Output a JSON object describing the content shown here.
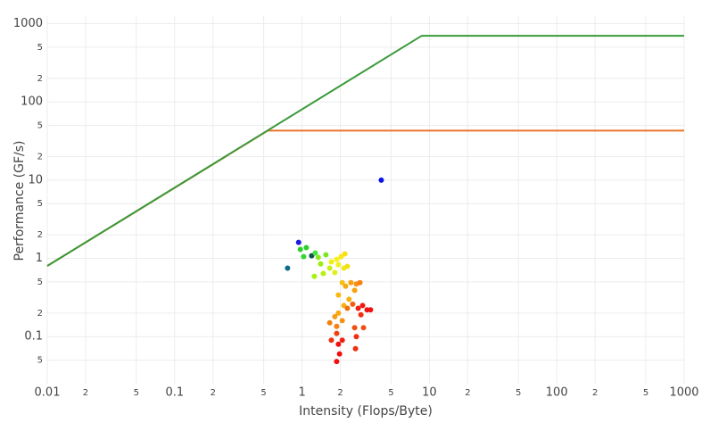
{
  "chart_data": {
    "type": "roofline",
    "x_label": "Intensity (Flops/Byte)",
    "y_label": "Performance (GF/s)",
    "xlog": true,
    "ylog": true,
    "grid": true,
    "xlim": [
      0.01,
      1000
    ],
    "ylim": [
      0.025,
      1250
    ],
    "xticks": [
      0.01,
      {
        "value": 0.02,
        "label": "2"
      },
      {
        "value": 0.05,
        "label": "5"
      },
      0.1,
      {
        "value": 0.2,
        "label": "2"
      },
      {
        "value": 0.5,
        "label": "5"
      },
      1,
      {
        "value": 2,
        "label": "2"
      },
      {
        "value": 5,
        "label": "5"
      },
      10,
      {
        "value": 20,
        "label": "2"
      },
      {
        "value": 50,
        "label": "5"
      },
      100,
      {
        "value": 200,
        "label": "2"
      },
      {
        "value": 500,
        "label": "5"
      },
      1000
    ],
    "yticks": [
      {
        "value": 0.05,
        "label": "5"
      },
      0.1,
      {
        "value": 0.2,
        "label": "2"
      },
      {
        "value": 0.5,
        "label": "5"
      },
      1,
      {
        "value": 2,
        "label": "2"
      },
      {
        "value": 5,
        "label": "5"
      },
      10,
      {
        "value": 20,
        "label": "2"
      },
      {
        "value": 50,
        "label": "5"
      },
      100,
      {
        "value": 200,
        "label": "2"
      },
      {
        "value": 500,
        "label": "5"
      },
      1000
    ],
    "lines": [
      {
        "color": "#e8762b",
        "x": [
          0.01,
          0.54,
          1000
        ],
        "values": [
          0.8,
          43,
          43
        ]
      },
      {
        "color": "#3a9a3a",
        "x": [
          0.01,
          8.7,
          1000
        ],
        "values": [
          0.8,
          700,
          700
        ]
      }
    ],
    "points": {
      "x": [
        4.19,
        0.94,
        0.77,
        0.97,
        1.08,
        1.03,
        1.19,
        1.27,
        1.34,
        1.4,
        1.54,
        1.25,
        1.47,
        1.65,
        1.7,
        1.87,
        2.03,
        2.17,
        1.93,
        2.13,
        2.27,
        1.81,
        2.07,
        1.93,
        2.2,
        2.42,
        2.67,
        2.85,
        2.59,
        2.34,
        2.13,
        1.93,
        1.81,
        2.07,
        1.87,
        2.27,
        2.5,
        2.76,
        2.99,
        3.24,
        3.45,
        2.9,
        2.59,
        3.04,
        2.67,
        1.87,
        1.93,
        2.07,
        1.97,
        1.87,
        2.63,
        1.7,
        1.65
      ],
      "values": [
        10,
        1.6,
        0.75,
        1.3,
        1.37,
        1.05,
        1.08,
        1.17,
        1.03,
        0.85,
        1.11,
        0.59,
        0.64,
        0.75,
        0.9,
        0.97,
        1.05,
        1.14,
        0.83,
        0.75,
        0.79,
        0.66,
        0.49,
        0.34,
        0.44,
        0.49,
        0.47,
        0.49,
        0.39,
        0.3,
        0.25,
        0.2,
        0.18,
        0.16,
        0.135,
        0.23,
        0.26,
        0.23,
        0.25,
        0.22,
        0.22,
        0.19,
        0.13,
        0.13,
        0.1,
        0.11,
        0.08,
        0.09,
        0.06,
        0.048,
        0.07,
        0.09,
        0.15
      ],
      "colors": [
        "#0a14e6",
        "#1a1ae0",
        "#106a8a",
        "#2ad02a",
        "#2ad02a",
        "#30d830",
        "#145050",
        "#3ee63e",
        "#8ae81e",
        "#9aee10",
        "#7ae620",
        "#a8f010",
        "#b8f010",
        "#c8f010",
        "#f0f010",
        "#f8f014",
        "#f8e810",
        "#f8e010",
        "#f0f020",
        "#f0e818",
        "#f0e018",
        "#e0f018",
        "#f8c010",
        "#f8b810",
        "#f8a810",
        "#f8a010",
        "#f89010",
        "#f88010",
        "#f8a010",
        "#f8b010",
        "#f8b010",
        "#f8a810",
        "#f89c10",
        "#f89010",
        "#f88010",
        "#f07010",
        "#f06010",
        "#f02010",
        "#f01810",
        "#f01010",
        "#f01010",
        "#f03010",
        "#f05010",
        "#f05010",
        "#f03010",
        "#f04010",
        "#f01010",
        "#f02010",
        "#f01010",
        "#f01010",
        "#f03010",
        "#f03010",
        "#f08010"
      ]
    }
  }
}
